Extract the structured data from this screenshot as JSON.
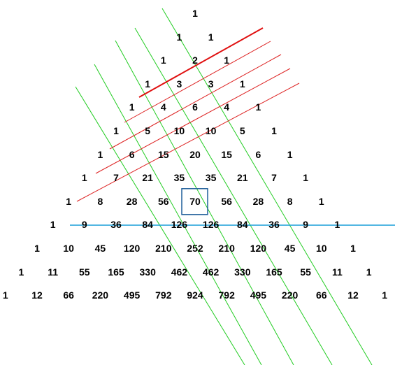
{
  "triangle": {
    "rows": [
      [
        "1"
      ],
      [
        "1",
        "1"
      ],
      [
        "1",
        "2",
        "1"
      ],
      [
        "1",
        "3",
        "3",
        "1"
      ],
      [
        "1",
        "4",
        "6",
        "4",
        "1"
      ],
      [
        "1",
        "5",
        "10",
        "10",
        "5",
        "1"
      ],
      [
        "1",
        "6",
        "15",
        "20",
        "15",
        "6",
        "1"
      ],
      [
        "1",
        "7",
        "21",
        "35",
        "35",
        "21",
        "7",
        "1"
      ],
      [
        "1",
        "8",
        "28",
        "56",
        "70",
        "56",
        "28",
        "8",
        "1"
      ],
      [
        "1",
        "9",
        "36",
        "84",
        "126",
        "126",
        "84",
        "36",
        "9",
        "1"
      ],
      [
        "1",
        "10",
        "45",
        "120",
        "210",
        "252",
        "210",
        "120",
        "45",
        "10",
        "1"
      ],
      [
        "1",
        "11",
        "55",
        "165",
        "330",
        "462",
        "462",
        "330",
        "165",
        "55",
        "11",
        "1"
      ],
      [
        "1",
        "12",
        "66",
        "220",
        "495",
        "792",
        "924",
        "792",
        "495",
        "220",
        "66",
        "12",
        "1"
      ]
    ]
  },
  "highlight": {
    "row_index": 8,
    "cell_index": 4,
    "value": "70"
  },
  "colors": {
    "text": "#000000",
    "green_lines": "#22cc22",
    "red_lines": "#dd2222",
    "highlighted_red_line": "#e01010",
    "blue_line": "#1a9fd8",
    "highlight_box": "#1f5f9a"
  }
}
